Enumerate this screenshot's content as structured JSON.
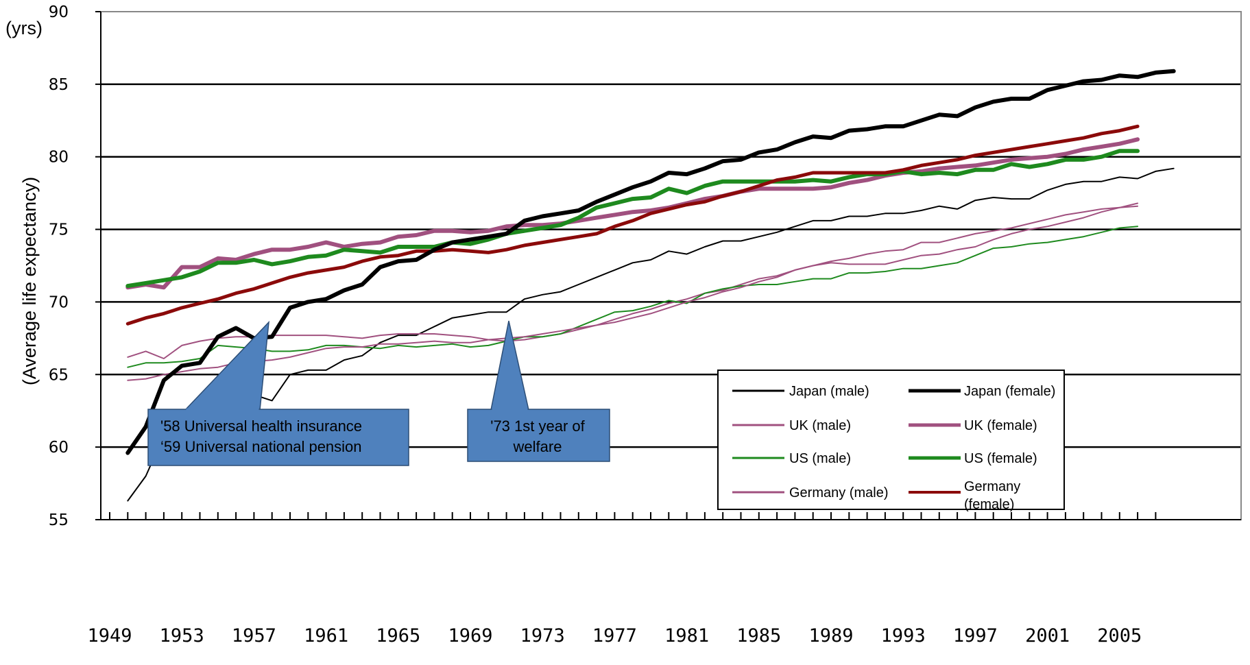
{
  "chart_data": {
    "type": "line",
    "y_unit": "(yrs)",
    "ylabel": "(Average life expectancy)",
    "xlabel": "",
    "ylim": [
      55,
      90
    ],
    "y_ticks": [
      55,
      60,
      65,
      70,
      75,
      80,
      85,
      90
    ],
    "xlim": [
      1949,
      2007
    ],
    "x_tick_labels": [
      1949,
      1953,
      1957,
      1961,
      1965,
      1969,
      1973,
      1977,
      1981,
      1985,
      1989,
      1993,
      1997,
      2001,
      2005
    ],
    "grid": "horizontal",
    "legend_position": "bottom-right",
    "series": [
      {
        "name": "Japan (male)",
        "color": "#000000",
        "width": 2,
        "start": 1950,
        "values": [
          56.3,
          58.0,
          60.8,
          61.9,
          62.4,
          63.4,
          63.9,
          63.6,
          63.2,
          65.0,
          65.3,
          65.3,
          66.0,
          66.3,
          67.2,
          67.7,
          67.7,
          68.3,
          68.9,
          69.1,
          69.3,
          69.3,
          70.2,
          70.5,
          70.7,
          71.2,
          71.7,
          72.2,
          72.7,
          72.9,
          73.5,
          73.3,
          73.8,
          74.2,
          74.2,
          74.5,
          74.8,
          75.2,
          75.6,
          75.6,
          75.9,
          75.9,
          76.1,
          76.1,
          76.3,
          76.6,
          76.4,
          77.0,
          77.2,
          77.1,
          77.1,
          77.7,
          78.1,
          78.3,
          78.3,
          78.6,
          78.5,
          79.0,
          79.2
        ]
      },
      {
        "name": "Japan (female)",
        "color": "#000000",
        "width": 6,
        "start": 1950,
        "values": [
          59.6,
          61.4,
          64.6,
          65.6,
          65.8,
          67.6,
          68.2,
          67.5,
          67.6,
          69.6,
          70.0,
          70.2,
          70.8,
          71.2,
          72.4,
          72.8,
          72.9,
          73.6,
          74.1,
          74.3,
          74.5,
          74.7,
          75.6,
          75.9,
          76.1,
          76.3,
          76.9,
          77.4,
          77.9,
          78.3,
          78.9,
          78.8,
          79.2,
          79.7,
          79.8,
          80.3,
          80.5,
          81.0,
          81.4,
          81.3,
          81.8,
          81.9,
          82.1,
          82.1,
          82.5,
          82.9,
          82.8,
          83.4,
          83.8,
          84.0,
          84.0,
          84.6,
          84.9,
          85.2,
          85.3,
          85.6,
          85.5,
          85.8,
          85.9
        ]
      },
      {
        "name": "UK (male)",
        "color": "#a0507f",
        "width": 2,
        "start": 1950,
        "values": [
          66.2,
          66.6,
          66.1,
          67.0,
          67.3,
          67.5,
          67.6,
          67.6,
          67.7,
          67.7,
          67.7,
          67.7,
          67.6,
          67.5,
          67.7,
          67.8,
          67.8,
          67.8,
          67.7,
          67.6,
          67.4,
          67.3,
          67.4,
          67.6,
          67.8,
          68.1,
          68.4,
          68.8,
          69.2,
          69.5,
          69.9,
          70.2,
          70.6,
          70.8,
          71.2,
          71.6,
          71.8,
          72.2,
          72.5,
          72.7,
          72.6,
          72.6,
          72.6,
          72.9,
          73.2,
          73.3,
          73.6,
          73.8,
          74.3,
          74.7,
          75.0,
          75.2,
          75.5,
          75.8,
          76.2,
          76.5,
          76.8
        ]
      },
      {
        "name": "UK (female)",
        "color": "#a0507f",
        "width": 6,
        "start": 1950,
        "values": [
          71.0,
          71.2,
          71.0,
          72.4,
          72.4,
          73.0,
          72.9,
          73.3,
          73.6,
          73.6,
          73.8,
          74.1,
          73.8,
          74.0,
          74.1,
          74.5,
          74.6,
          74.9,
          74.9,
          74.8,
          74.9,
          75.2,
          75.3,
          75.3,
          75.4,
          75.6,
          75.8,
          76.0,
          76.2,
          76.3,
          76.5,
          76.8,
          77.1,
          77.3,
          77.6,
          77.8,
          77.8,
          77.8,
          77.8,
          77.9,
          78.2,
          78.4,
          78.7,
          78.9,
          79.0,
          79.2,
          79.3,
          79.4,
          79.6,
          79.8,
          79.9,
          80.0,
          80.2,
          80.5,
          80.7,
          80.9,
          81.2
        ]
      },
      {
        "name": "US (male)",
        "color": "#1e8a1e",
        "width": 2,
        "start": 1950,
        "values": [
          65.5,
          65.8,
          65.8,
          65.9,
          66.1,
          67.0,
          66.9,
          66.8,
          66.6,
          66.6,
          66.7,
          67.0,
          67.0,
          66.9,
          66.8,
          67.0,
          66.9,
          67.0,
          67.1,
          66.9,
          67.0,
          67.3,
          67.6,
          67.6,
          67.8,
          68.3,
          68.8,
          69.3,
          69.4,
          69.7,
          70.1,
          69.9,
          70.6,
          70.9,
          71.1,
          71.2,
          71.2,
          71.4,
          71.6,
          71.6,
          72.0,
          72.0,
          72.1,
          72.3,
          72.3,
          72.5,
          72.7,
          73.2,
          73.7,
          73.8,
          74.0,
          74.1,
          74.3,
          74.5,
          74.8,
          75.1,
          75.2
        ]
      },
      {
        "name": "US (female)",
        "color": "#1e8a1e",
        "width": 6,
        "start": 1950,
        "values": [
          71.1,
          71.3,
          71.5,
          71.7,
          72.1,
          72.7,
          72.7,
          72.9,
          72.6,
          72.8,
          73.1,
          73.2,
          73.6,
          73.5,
          73.4,
          73.8,
          73.8,
          73.8,
          74.1,
          74.0,
          74.3,
          74.7,
          74.9,
          75.1,
          75.3,
          75.8,
          76.5,
          76.8,
          77.1,
          77.2,
          77.8,
          77.5,
          78.0,
          78.3,
          78.3,
          78.3,
          78.3,
          78.3,
          78.4,
          78.3,
          78.6,
          78.8,
          78.8,
          79.0,
          78.8,
          78.9,
          78.8,
          79.1,
          79.1,
          79.5,
          79.3,
          79.5,
          79.8,
          79.8,
          80.0,
          80.4,
          80.4
        ]
      },
      {
        "name": "Germany (male)",
        "color": "#a0507f",
        "width": 2,
        "start": 1950,
        "values": [
          64.6,
          64.7,
          65.0,
          65.2,
          65.4,
          65.5,
          65.8,
          65.9,
          66.0,
          66.2,
          66.5,
          66.8,
          66.9,
          66.9,
          67.1,
          67.1,
          67.2,
          67.3,
          67.2,
          67.2,
          67.4,
          67.5,
          67.6,
          67.8,
          68.0,
          68.2,
          68.4,
          68.6,
          68.9,
          69.2,
          69.6,
          70.0,
          70.3,
          70.7,
          71.0,
          71.4,
          71.7,
          72.2,
          72.5,
          72.8,
          73.0,
          73.3,
          73.5,
          73.6,
          74.1,
          74.1,
          74.4,
          74.7,
          74.9,
          75.1,
          75.4,
          75.7,
          76.0,
          76.2,
          76.4,
          76.5,
          76.6
        ]
      },
      {
        "name": "Germany (female)",
        "color": "#8b0a0a",
        "width": 5,
        "start": 1950,
        "values": [
          68.5,
          68.9,
          69.2,
          69.6,
          69.9,
          70.2,
          70.6,
          70.9,
          71.3,
          71.7,
          72.0,
          72.2,
          72.4,
          72.8,
          73.1,
          73.2,
          73.5,
          73.5,
          73.6,
          73.5,
          73.4,
          73.6,
          73.9,
          74.1,
          74.3,
          74.5,
          74.7,
          75.2,
          75.6,
          76.1,
          76.4,
          76.7,
          76.9,
          77.3,
          77.6,
          78.0,
          78.4,
          78.6,
          78.9,
          78.9,
          78.9,
          78.9,
          78.9,
          79.1,
          79.4,
          79.6,
          79.8,
          80.1,
          80.3,
          80.5,
          80.7,
          80.9,
          81.1,
          81.3,
          81.6,
          81.8,
          82.1
        ]
      }
    ],
    "annotations": [
      {
        "text": "'58    Universal health insurance",
        "text2": "‘59    Universal national pension"
      },
      {
        "text": "'73    1st year of",
        "text2": "welfare"
      }
    ]
  },
  "colors": {
    "callout_fill": "#4f81bd",
    "callout_border": "#2c4d75",
    "grid": "#000000",
    "frame": "#888888"
  }
}
